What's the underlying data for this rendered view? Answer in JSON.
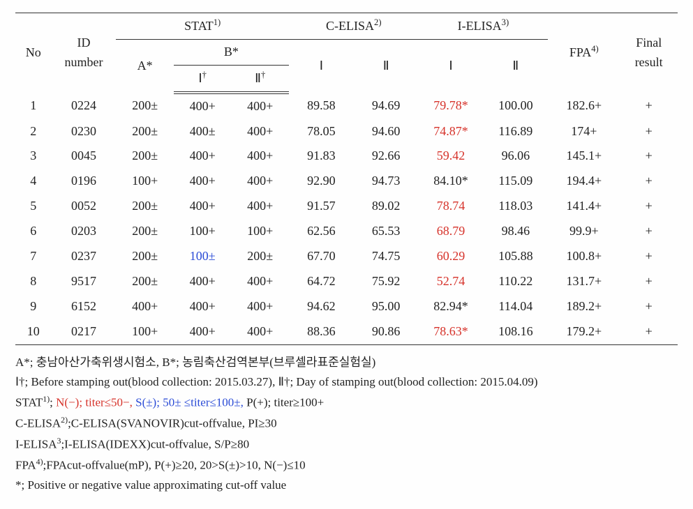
{
  "colors": {
    "text": "#222222",
    "rule": "#333333",
    "red": "#d6322a",
    "blue": "#2a4bd6",
    "background": "#fefefe"
  },
  "typography": {
    "font_family": "Times New Roman",
    "table_fontsize_pt": 13,
    "footnote_fontsize_pt": 12
  },
  "header": {
    "no": "No",
    "id_number_l1": "ID",
    "id_number_l2": "number",
    "stat": "STAT",
    "stat_sup": "1)",
    "stat_A": "A*",
    "stat_B": "B*",
    "stat_B_I": "Ⅰ",
    "stat_B_I_dag": "†",
    "stat_B_II": "Ⅱ",
    "stat_B_II_dag": "†",
    "celisa": "C-ELISA",
    "celisa_sup": "2)",
    "celisa_I": "Ⅰ",
    "celisa_II": "Ⅱ",
    "ielisa": "I-ELISA",
    "ielisa_sup": "3)",
    "ielisa_I": "Ⅰ",
    "ielisa_II": "Ⅱ",
    "fpa": "FPA",
    "fpa_sup": "4)",
    "final_l1": "Final",
    "final_l2": "result"
  },
  "rows": [
    {
      "no": "1",
      "id": "0224",
      "A": "200±",
      "BI": "400+",
      "BII": "400+",
      "CI": "89.58",
      "CII": "94.69",
      "II": {
        "v": "79.78*",
        "c": "red"
      },
      "III": "100.00",
      "FPA": "182.6+",
      "FR": "+"
    },
    {
      "no": "2",
      "id": "0230",
      "A": "200±",
      "BI": "400±",
      "BII": "400+",
      "CI": "78.05",
      "CII": "94.60",
      "II": {
        "v": "74.87*",
        "c": "red"
      },
      "III": "116.89",
      "FPA": "174+",
      "FR": "+"
    },
    {
      "no": "3",
      "id": "0045",
      "A": "200±",
      "BI": "400+",
      "BII": "400+",
      "CI": "91.83",
      "CII": "92.66",
      "II": {
        "v": "59.42",
        "c": "red"
      },
      "III": "96.06",
      "FPA": "145.1+",
      "FR": "+"
    },
    {
      "no": "4",
      "id": "0196",
      "A": "100+",
      "BI": "400+",
      "BII": "400+",
      "CI": "92.90",
      "CII": "94.73",
      "II": {
        "v": "84.10*",
        "c": ""
      },
      "III": "115.09",
      "FPA": "194.4+",
      "FR": "+"
    },
    {
      "no": "5",
      "id": "0052",
      "A": "200±",
      "BI": "400+",
      "BII": "400+",
      "CI": "91.57",
      "CII": "89.02",
      "II": {
        "v": "78.74",
        "c": "red"
      },
      "III": "118.03",
      "FPA": "141.4+",
      "FR": "+"
    },
    {
      "no": "6",
      "id": "0203",
      "A": "200±",
      "BI": "100+",
      "BII": "100+",
      "CI": "62.56",
      "CII": "65.53",
      "II": {
        "v": "68.79",
        "c": "red"
      },
      "III": "98.46",
      "FPA": "99.9+",
      "FR": "+"
    },
    {
      "no": "7",
      "id": "0237",
      "A": "200±",
      "BI": {
        "v": "100±",
        "c": "blue"
      },
      "BII": "200±",
      "CI": "67.70",
      "CII": "74.75",
      "II": {
        "v": "60.29",
        "c": "red"
      },
      "III": "105.88",
      "FPA": "100.8+",
      "FR": "+"
    },
    {
      "no": "8",
      "id": "9517",
      "A": "200±",
      "BI": "400+",
      "BII": "400+",
      "CI": "64.72",
      "CII": "75.92",
      "II": {
        "v": "52.74",
        "c": "red"
      },
      "III": "110.22",
      "FPA": "131.7+",
      "FR": "+"
    },
    {
      "no": "9",
      "id": "6152",
      "A": "400+",
      "BI": "400+",
      "BII": "400+",
      "CI": "94.62",
      "CII": "95.00",
      "II": {
        "v": "82.94*",
        "c": ""
      },
      "III": "114.04",
      "FPA": "189.2+",
      "FR": "+"
    },
    {
      "no": "10",
      "id": "0217",
      "A": "100+",
      "BI": "400+",
      "BII": "400+",
      "CI": "88.36",
      "CII": "90.86",
      "II": {
        "v": "78.63*",
        "c": "red"
      },
      "III": "108.16",
      "FPA": "179.2+",
      "FR": "+"
    }
  ],
  "footnotes": {
    "l1_a": "A*; 충남아산가축위생시험소,   B*; 농림축산검역본부(브루셀라표준실험실)",
    "l2": "Ⅰ†; Before stamping out(blood collection: 2015.03.27),  Ⅱ†; Day of stamping out(blood collection: 2015.04.09)",
    "l3_pre": "STAT",
    "l3_sup": "1)",
    "l3_a": "; ",
    "l3_neg": "N(−); titer≤50−,",
    "l3_mid": "   ",
    "l3_susp": "S(±); 50± ≤titer≤100±,",
    "l3_pos": "   P(+); titer≥100+",
    "l4_pre": "C-ELISA",
    "l4_sup": "2)",
    "l4_rest": ";C-ELISA(SVANOVIR)cut-offvalue, PI≥30",
    "l5_pre": "I-ELISA",
    "l5_sup": "3",
    "l5_rest": ";I-ELISA(IDEXX)cut-offvalue, S/P≥80",
    "l6_pre": "FPA",
    "l6_sup": "4)",
    "l6_rest": ";FPAcut-offvalue(mP), P(+)≥20,   20>S(±)>10,   N(−)≤10",
    "l7": "*; Positive or negative value approximating cut-off value"
  }
}
